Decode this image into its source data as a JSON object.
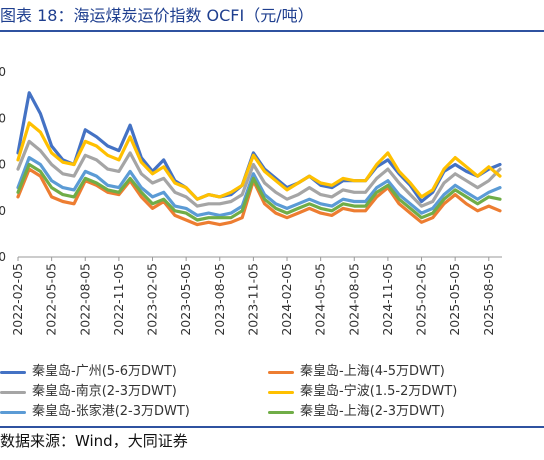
{
  "header": {
    "title": "图表 18：海运煤炭运价指数 OCFI（元/吨）"
  },
  "footer": {
    "source": "数据来源：Wind，大同证券"
  },
  "colors": {
    "accent": "#2f52a0"
  },
  "chart_data": {
    "type": "line",
    "title": "海运煤炭运价指数 OCFI（元/吨）",
    "xlabel": "",
    "ylabel": "",
    "y_tick_labels": [
      "0",
      "0",
      "0",
      "0",
      "0"
    ],
    "ylim": [
      0,
      80
    ],
    "x_tick_labels": [
      "2022-02-05",
      "2022-05-05",
      "2022-08-05",
      "2022-11-05",
      "2023-02-05",
      "2023-05-05",
      "2023-08-05",
      "2023-11-05",
      "2024-02-05",
      "2024-05-05",
      "2024-08-05",
      "2024-11-05",
      "2025-02-05",
      "2025-05-05",
      "2025-08-05"
    ],
    "x": [
      "2022-02-05",
      "2022-03-05",
      "2022-04-05",
      "2022-05-05",
      "2022-06-05",
      "2022-07-05",
      "2022-08-05",
      "2022-09-05",
      "2022-10-05",
      "2022-11-05",
      "2022-12-05",
      "2023-01-05",
      "2023-02-05",
      "2023-03-05",
      "2023-04-05",
      "2023-05-05",
      "2023-06-05",
      "2023-07-05",
      "2023-08-05",
      "2023-09-05",
      "2023-10-05",
      "2023-11-05",
      "2023-12-05",
      "2024-01-05",
      "2024-02-05",
      "2024-03-05",
      "2024-04-05",
      "2024-05-05",
      "2024-06-05",
      "2024-07-05",
      "2024-08-05",
      "2024-09-05",
      "2024-10-05",
      "2024-11-05",
      "2024-12-05",
      "2025-01-05",
      "2025-02-05",
      "2025-03-05",
      "2025-04-05",
      "2025-05-05",
      "2025-06-05",
      "2025-07-05",
      "2025-08-05",
      "2025-09-05"
    ],
    "series": [
      {
        "name": "秦皇岛-广州(5-6万DWT)",
        "color": "#4472c4",
        "values": [
          45,
          71,
          62,
          48,
          42,
          40,
          55,
          52,
          48,
          46,
          57,
          43,
          37,
          42,
          33,
          30,
          25,
          27,
          26,
          27,
          31,
          45,
          38,
          34,
          30,
          32,
          35,
          31,
          30,
          33,
          33,
          33,
          39,
          42,
          36,
          31,
          24,
          28,
          37,
          40,
          37,
          35,
          38,
          40
        ]
      },
      {
        "name": "秦皇岛-上海(4-5万DWT)",
        "color": "#ed7d31",
        "values": [
          26,
          38,
          35,
          26,
          24,
          23,
          33,
          31,
          28,
          27,
          33,
          26,
          21,
          24,
          18,
          16,
          14,
          15,
          14,
          15,
          17,
          33,
          23,
          19,
          17,
          19,
          21,
          19,
          18,
          21,
          20,
          20,
          26,
          30,
          23,
          19,
          15,
          17,
          23,
          27,
          23,
          20,
          22,
          20
        ]
      },
      {
        "name": "秦皇岛-南京(2-3万DWT)",
        "color": "#a5a5a5",
        "values": [
          38,
          50,
          46,
          40,
          36,
          35,
          44,
          42,
          38,
          37,
          45,
          36,
          32,
          34,
          28,
          26,
          22,
          23,
          23,
          24,
          27,
          40,
          32,
          28,
          25,
          27,
          30,
          27,
          26,
          29,
          28,
          28,
          34,
          38,
          32,
          27,
          22,
          24,
          32,
          36,
          33,
          30,
          33,
          38
        ]
      },
      {
        "name": "秦皇岛-宁波(1.5-2万DWT)",
        "color": "#ffc000",
        "values": [
          42,
          58,
          54,
          45,
          41,
          40,
          50,
          48,
          44,
          42,
          52,
          41,
          36,
          39,
          32,
          30,
          25,
          27,
          26,
          28,
          31,
          44,
          37,
          33,
          29,
          32,
          35,
          32,
          31,
          34,
          33,
          33,
          40,
          45,
          37,
          32,
          26,
          29,
          38,
          43,
          39,
          35,
          39,
          35
        ]
      },
      {
        "name": "秦皇岛-张家港(2-3万DWT)",
        "color": "#5b9bd5",
        "values": [
          30,
          43,
          40,
          33,
          30,
          29,
          37,
          35,
          31,
          30,
          37,
          30,
          26,
          28,
          22,
          21,
          18,
          19,
          18,
          19,
          22,
          36,
          27,
          23,
          21,
          23,
          25,
          23,
          22,
          25,
          24,
          24,
          30,
          33,
          27,
          23,
          19,
          21,
          27,
          31,
          28,
          25,
          28,
          30
        ]
      },
      {
        "name": "秦皇岛-上海(2-3万DWT)",
        "color": "#70ad47",
        "values": [
          28,
          40,
          37,
          30,
          27,
          26,
          34,
          32,
          29,
          28,
          34,
          28,
          23,
          25,
          20,
          19,
          16,
          17,
          17,
          17,
          20,
          34,
          25,
          21,
          19,
          21,
          23,
          21,
          20,
          23,
          22,
          22,
          28,
          31,
          25,
          21,
          17,
          19,
          25,
          29,
          26,
          23,
          26,
          25
        ]
      }
    ],
    "legend": "bottom",
    "grid": false
  }
}
